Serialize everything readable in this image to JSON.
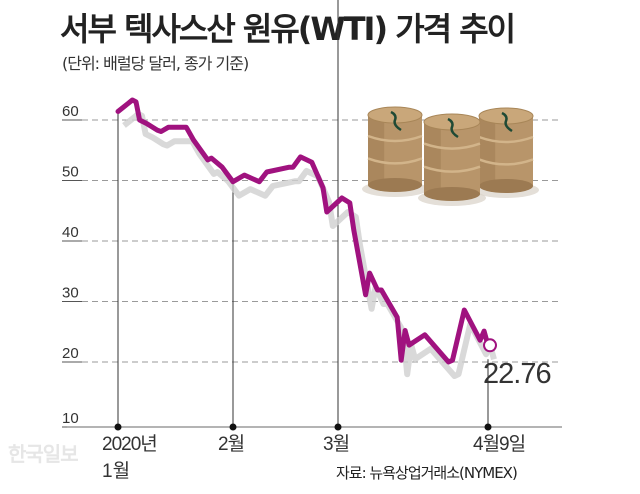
{
  "title": "서부 텍사스산 원유(WTI) 가격 추이",
  "subtitle": "(단위: 배럴당 달러, 종가 기준)",
  "source": "자료: 뉴욕상업거래소(NYMEX)",
  "watermark": "한국일보",
  "colors": {
    "line": "#a0127f",
    "grid": "#9a9a9a",
    "shadow": "#cfcfcf"
  },
  "illustration": "oil-barrels",
  "chart_data": {
    "type": "line",
    "title": "서부 텍사스산 원유(WTI) 가격 추이",
    "ylabel": "(단위: 배럴당 달러, 종가 기준)",
    "ylim": [
      10,
      65
    ],
    "yticks": [
      10,
      20,
      30,
      40,
      50,
      60
    ],
    "grid": "horizontal dashed",
    "xticks": [
      {
        "date": "2020-01-02",
        "label": "2020년",
        "label2": "1월"
      },
      {
        "date": "2020-02-03",
        "label": "2월"
      },
      {
        "date": "2020-03-02",
        "label": "3월"
      },
      {
        "date": "2020-04-09",
        "label": "4월9일"
      }
    ],
    "end_label": "22.76",
    "points": [
      [
        "2020-01-02",
        61.4
      ],
      [
        "2020-01-06",
        63.3
      ],
      [
        "2020-01-07",
        63.0
      ],
      [
        "2020-01-08",
        60.0
      ],
      [
        "2020-01-10",
        59.4
      ],
      [
        "2020-01-13",
        58.3
      ],
      [
        "2020-01-14",
        58.1
      ],
      [
        "2020-01-16",
        58.8
      ],
      [
        "2020-01-21",
        58.8
      ],
      [
        "2020-01-23",
        56.7
      ],
      [
        "2020-01-27",
        53.4
      ],
      [
        "2020-01-28",
        53.7
      ],
      [
        "2020-01-31",
        52.2
      ],
      [
        "2020-02-03",
        49.8
      ],
      [
        "2020-02-06",
        50.9
      ],
      [
        "2020-02-10",
        49.8
      ],
      [
        "2020-02-12",
        51.4
      ],
      [
        "2020-02-18",
        52.2
      ],
      [
        "2020-02-19",
        52.2
      ],
      [
        "2020-02-21",
        53.9
      ],
      [
        "2020-02-24",
        53.0
      ],
      [
        "2020-02-27",
        48.8
      ],
      [
        "2020-02-28",
        44.8
      ],
      [
        "2020-03-03",
        47.1
      ],
      [
        "2020-03-05",
        46.3
      ],
      [
        "2020-03-06",
        41.8
      ],
      [
        "2020-03-09",
        31.1
      ],
      [
        "2020-03-10",
        34.7
      ],
      [
        "2020-03-12",
        31.9
      ],
      [
        "2020-03-13",
        31.9
      ],
      [
        "2020-03-17",
        27.4
      ],
      [
        "2020-03-18",
        20.3
      ],
      [
        "2020-03-19",
        25.2
      ],
      [
        "2020-03-20",
        22.8
      ],
      [
        "2020-03-24",
        24.5
      ],
      [
        "2020-03-30",
        20.0
      ],
      [
        "2020-03-31",
        20.3
      ],
      [
        "2020-04-03",
        28.6
      ],
      [
        "2020-04-07",
        23.6
      ],
      [
        "2020-04-08",
        25.1
      ],
      [
        "2020-04-09",
        22.76
      ]
    ]
  }
}
